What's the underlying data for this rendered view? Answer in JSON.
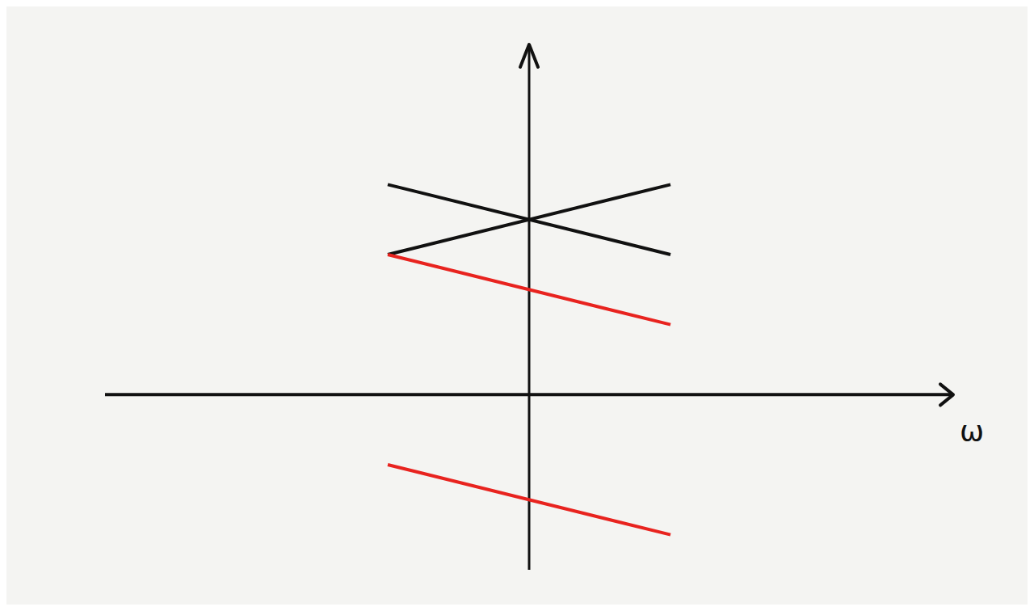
{
  "chart_data": {
    "type": "line",
    "x_label": "ω",
    "xlim": [
      -6,
      6
    ],
    "ylim": [
      -2.5,
      5
    ],
    "tick_labels": false,
    "grid": false,
    "x": [
      -2,
      2
    ],
    "series": [
      {
        "color": "#111111",
        "values": [
          3,
          2
        ]
      },
      {
        "color": "#111111",
        "values": [
          2,
          3
        ]
      },
      {
        "color": "#e8231f",
        "values": [
          2,
          1
        ]
      },
      {
        "color": "#e8231f",
        "values": [
          -1,
          -2
        ]
      }
    ]
  }
}
